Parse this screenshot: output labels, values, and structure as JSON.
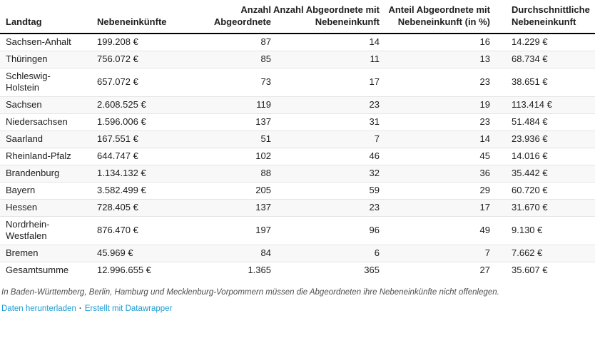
{
  "chart_data": {
    "type": "table",
    "columns": [
      "Landtag",
      "Nebeneinkünfte",
      "Anzahl Abgeordnete",
      "Anzahl Abgeordnete mit Nebeneinkunft",
      "Anteil Abgeordnete mit Nebeneinkunft (in %)",
      "Durchschnittliche Nebeneinkunft"
    ],
    "rows": [
      [
        "Sachsen-Anhalt",
        "199.208 €",
        "87",
        "14",
        "16",
        "14.229 €"
      ],
      [
        "Thüringen",
        "756.072 €",
        "85",
        "11",
        "13",
        "68.734 €"
      ],
      [
        "Schleswig-Holstein",
        "657.072 €",
        "73",
        "17",
        "23",
        "38.651 €"
      ],
      [
        "Sachsen",
        "2.608.525 €",
        "119",
        "23",
        "19",
        "113.414 €"
      ],
      [
        "Niedersachsen",
        "1.596.006 €",
        "137",
        "31",
        "23",
        "51.484 €"
      ],
      [
        "Saarland",
        "167.551 €",
        "51",
        "7",
        "14",
        "23.936 €"
      ],
      [
        "Rheinland-Pfalz",
        "644.747 €",
        "102",
        "46",
        "45",
        "14.016 €"
      ],
      [
        "Brandenburg",
        "1.134.132 €",
        "88",
        "32",
        "36",
        "35.442 €"
      ],
      [
        "Bayern",
        "3.582.499 €",
        "205",
        "59",
        "29",
        "60.720 €"
      ],
      [
        "Hessen",
        "728.405 €",
        "137",
        "23",
        "17",
        "31.670 €"
      ],
      [
        "Nordrhein-Westfalen",
        "876.470 €",
        "197",
        "96",
        "49",
        "9.130 €"
      ],
      [
        "Bremen",
        "45.969 €",
        "84",
        "6",
        "7",
        "7.662 €"
      ],
      [
        "Gesamtsumme",
        "12.996.655 €",
        "1.365",
        "365",
        "27",
        "35.607 €"
      ]
    ],
    "layout_hints": {
      "striped_rows": true,
      "column_aligns": [
        "left",
        "left",
        "right",
        "right",
        "right",
        "left"
      ]
    }
  },
  "footer": {
    "note": "In Baden-Württemberg, Berlin, Hamburg und Mecklenburg-Vorpommern müssen die Abgeordneten ihre Nebeneinkünfte nicht offenlegen.",
    "download_label": "Daten herunterladen",
    "separator": "·",
    "credit_label": "Erstellt mit Datawrapper"
  },
  "colors": {
    "link": "#1d9bd1",
    "stripe": "#f8f8f8",
    "row_border": "#e4e4e4",
    "header_border": "#000000",
    "text": "#202020",
    "note_text": "#4f4f4f"
  }
}
